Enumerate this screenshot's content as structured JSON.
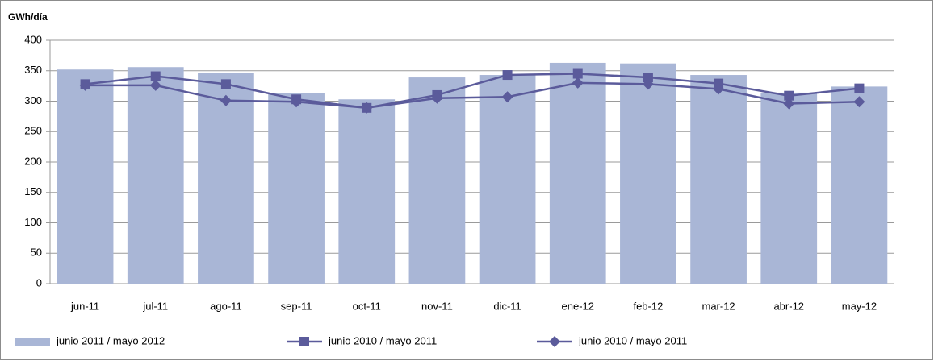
{
  "chart_data": {
    "type": "combo",
    "y_label": "GWh/día",
    "categories": [
      "jun-11",
      "jul-11",
      "ago-11",
      "sep-11",
      "oct-11",
      "nov-11",
      "dic-11",
      "ene-12",
      "feb-12",
      "mar-12",
      "abr-12",
      "may-12"
    ],
    "series": [
      {
        "name": "junio 2011 / mayo 2012",
        "kind": "bar",
        "color": "#a9b6d6",
        "values": [
          352,
          356,
          347,
          313,
          303,
          339,
          343,
          363,
          362,
          343,
          314,
          324
        ]
      },
      {
        "name": "junio 2010 / mayo 2011",
        "kind": "line",
        "marker": "square",
        "color": "#5b5b9b",
        "values": [
          328,
          341,
          328,
          303,
          289,
          310,
          343,
          345,
          339,
          329,
          309,
          321
        ]
      },
      {
        "name": "junio 2010 / mayo 2011",
        "kind": "line",
        "marker": "diamond",
        "color": "#5b5b9b",
        "values": [
          326,
          326,
          301,
          299,
          289,
          305,
          307,
          330,
          328,
          320,
          296,
          299
        ]
      }
    ],
    "ylim": [
      0,
      400
    ],
    "yticks": [
      0,
      50,
      100,
      150,
      200,
      250,
      300,
      350,
      400
    ],
    "grid": true,
    "legend": "bottom"
  }
}
